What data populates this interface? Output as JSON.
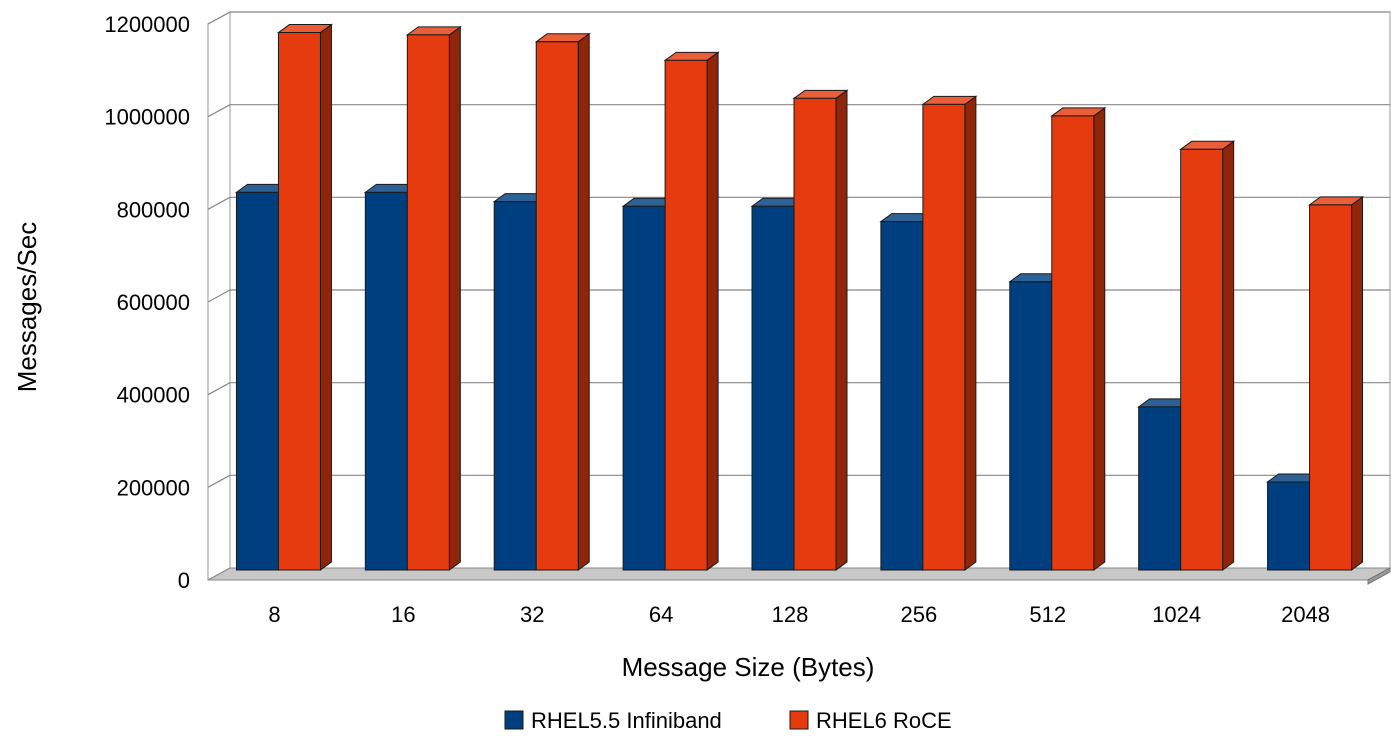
{
  "chart_data": {
    "type": "bar",
    "style": "3d-clustered-column",
    "title": "",
    "xlabel": "Message Size (Bytes)",
    "ylabel": "Messages/Sec",
    "categories": [
      "8",
      "16",
      "32",
      "64",
      "128",
      "256",
      "512",
      "1024",
      "2048"
    ],
    "series": [
      {
        "name": "RHEL5.5 Infiniband",
        "color": "#003f7f",
        "values": [
          815000,
          815000,
          795000,
          785000,
          785000,
          752000,
          622000,
          352000,
          190000
        ]
      },
      {
        "name": "RHEL6 RoCE",
        "color": "#e63b0f",
        "values": [
          1160000,
          1155000,
          1140000,
          1100000,
          1018000,
          1005000,
          980000,
          908000,
          788000
        ]
      }
    ],
    "ylim": [
      0,
      1200000
    ],
    "yticks": [
      "0",
      "200000",
      "400000",
      "600000",
      "800000",
      "1000000",
      "1200000"
    ],
    "grid": true,
    "legend": "bottom"
  }
}
